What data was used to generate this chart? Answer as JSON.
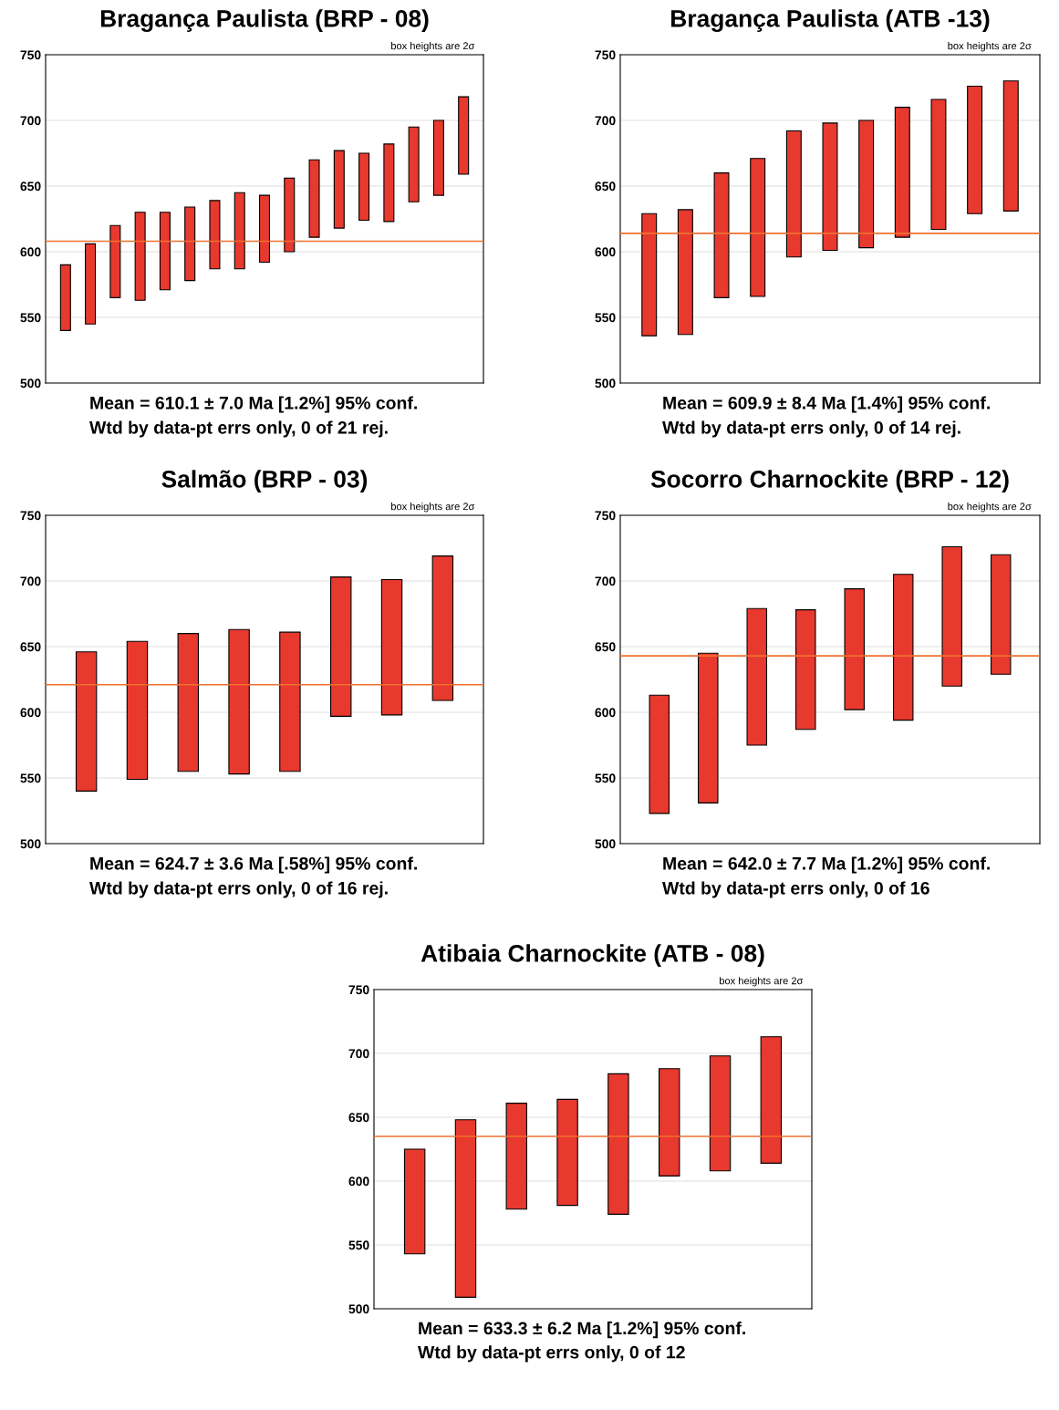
{
  "chart_data": [
    {
      "type": "bar",
      "title": "Bragança Paulista (BRP - 08)",
      "categories": [
        null,
        null,
        null,
        null,
        null,
        null,
        null,
        null,
        null,
        null,
        null,
        null,
        null,
        null,
        null,
        null,
        null
      ],
      "base": [
        540,
        545,
        565,
        563,
        571,
        578,
        587,
        587,
        592,
        600,
        611,
        618,
        624,
        623,
        638,
        643,
        659
      ],
      "values": [
        50,
        61,
        55,
        67,
        59,
        56,
        52,
        58,
        51,
        56,
        59,
        59,
        51,
        59,
        57,
        57,
        59
      ],
      "color": "#e8392e",
      "ylim": [
        500,
        750
      ],
      "yticks": [
        500,
        550,
        600,
        650,
        700,
        750
      ],
      "grid": "y",
      "tick_labels": "y",
      "ref_lines": [
        {
          "axis": "y",
          "value": 608,
          "color": "#f07030"
        }
      ],
      "annotations": [
        "box heights are 2σ",
        "Mean = 610.1 ± 7.0 Ma [1.2%] 95% conf.",
        "Wtd by data-pt errs only, 0 of 21 rej."
      ]
    },
    {
      "type": "bar",
      "title": "Bragança Paulista (ATB -13)",
      "categories": [
        null,
        null,
        null,
        null,
        null,
        null,
        null,
        null,
        null,
        null,
        null
      ],
      "base": [
        536,
        537,
        565,
        566,
        596,
        601,
        603,
        611,
        617,
        629,
        631
      ],
      "values": [
        93,
        95,
        95,
        105,
        96,
        97,
        97,
        99,
        99,
        97,
        99
      ],
      "color": "#e8392e",
      "ylim": [
        500,
        750
      ],
      "yticks": [
        500,
        550,
        600,
        650,
        700,
        750
      ],
      "grid": "y",
      "tick_labels": "y",
      "ref_lines": [
        {
          "axis": "y",
          "value": 614,
          "color": "#f07030"
        }
      ],
      "annotations": [
        "box heights are 2σ",
        "Mean = 609.9 ± 8.4 Ma [1.4%] 95% conf.",
        "Wtd by data-pt errs only, 0 of 14 rej."
      ]
    },
    {
      "type": "bar",
      "title": "Salmão (BRP - 03)",
      "categories": [
        null,
        null,
        null,
        null,
        null,
        null,
        null,
        null
      ],
      "base": [
        540,
        549,
        555,
        553,
        555,
        597,
        598,
        609
      ],
      "values": [
        106,
        105,
        105,
        110,
        106,
        106,
        103,
        110
      ],
      "color": "#e8392e",
      "ylim": [
        500,
        750
      ],
      "yticks": [
        500,
        550,
        600,
        650,
        700,
        750
      ],
      "grid": "y",
      "tick_labels": "y",
      "ref_lines": [
        {
          "axis": "y",
          "value": 621,
          "color": "#f07030"
        }
      ],
      "annotations": [
        "box heights are 2σ",
        "Mean = 624.7 ± 3.6 Ma [.58%] 95% conf.",
        "Wtd by data-pt errs only, 0 of 16 rej."
      ]
    },
    {
      "type": "bar",
      "title": "Socorro Charnockite (BRP - 12)",
      "categories": [
        null,
        null,
        null,
        null,
        null,
        null,
        null,
        null
      ],
      "base": [
        523,
        531,
        575,
        587,
        602,
        594,
        620,
        629
      ],
      "values": [
        90,
        114,
        104,
        91,
        92,
        111,
        106,
        91
      ],
      "color": "#e8392e",
      "ylim": [
        500,
        750
      ],
      "yticks": [
        500,
        550,
        600,
        650,
        700,
        750
      ],
      "grid": "y",
      "tick_labels": "y",
      "ref_lines": [
        {
          "axis": "y",
          "value": 643,
          "color": "#f07030"
        }
      ],
      "annotations": [
        "box heights are 2σ",
        "Mean = 642.0 ± 7.7 Ma [1.2%] 95% conf.",
        "Wtd by data-pt errs only, 0 of 16"
      ]
    },
    {
      "type": "bar",
      "title": "Atibaia Charnockite (ATB - 08)",
      "categories": [
        null,
        null,
        null,
        null,
        null,
        null,
        null,
        null
      ],
      "base": [
        543,
        509,
        578,
        581,
        574,
        604,
        608,
        614
      ],
      "values": [
        82,
        139,
        83,
        83,
        110,
        84,
        90,
        99
      ],
      "color": "#e8392e",
      "ylim": [
        500,
        750
      ],
      "yticks": [
        500,
        550,
        600,
        650,
        700,
        750
      ],
      "grid": "y",
      "tick_labels": "y",
      "ref_lines": [
        {
          "axis": "y",
          "value": 635,
          "color": "#f07030"
        }
      ],
      "annotations": [
        "box heights are 2σ",
        "Mean = 633.3 ± 6.2 Ma [1.2%] 95% conf.",
        "Wtd by data-pt errs only, 0 of 12"
      ]
    }
  ]
}
